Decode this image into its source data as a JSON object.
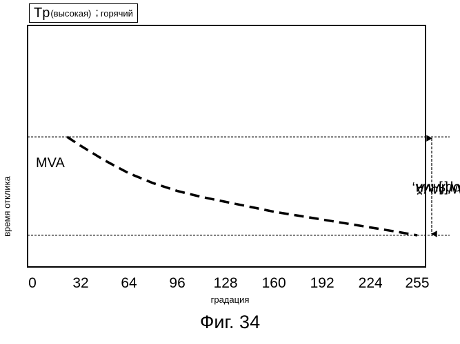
{
  "header": {
    "title_main": "Tp",
    "title_sub": "(высокая)",
    "title_sep": ";",
    "title_tail": "горячий"
  },
  "caption": "Фиг. 34",
  "annotation": {
    "tw_main": "TW[MVA, ",
    "tw_sub": "горячий",
    "tw_close": "]"
  },
  "chart_data": {
    "type": "line",
    "xlabel": "градация",
    "ylabel": "время отклика",
    "xlim": [
      0,
      255
    ],
    "x_ticks": [
      "0",
      "32",
      "64",
      "96",
      "128",
      "160",
      "192",
      "224",
      "255"
    ],
    "x_tick_values": [
      0,
      32,
      64,
      96,
      128,
      160,
      192,
      224,
      255
    ],
    "y_ticks": [],
    "grid": false,
    "series": [
      {
        "name": "MVA",
        "style": "dashed",
        "x": [
          23,
          32,
          48,
          64,
          80,
          96,
          112,
          128,
          144,
          160,
          176,
          192,
          208,
          224,
          240,
          255
        ],
        "y": [
          1.0,
          0.91,
          0.76,
          0.63,
          0.53,
          0.45,
          0.39,
          0.34,
          0.29,
          0.24,
          0.2,
          0.16,
          0.12,
          0.08,
          0.04,
          0.0
        ]
      }
    ],
    "reference_lines": [
      {
        "y": 1.0,
        "style": "dotted"
      },
      {
        "y": 0.0,
        "style": "dotted"
      }
    ],
    "colors": {
      "line": "#000000",
      "frame": "#000000",
      "background": "#ffffff"
    }
  }
}
